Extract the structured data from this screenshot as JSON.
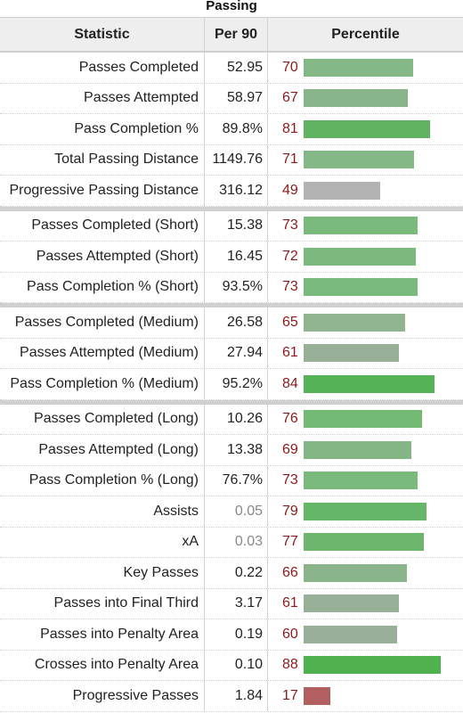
{
  "title": "Passing",
  "columns": {
    "statistic": "Statistic",
    "per90": "Per 90",
    "percentile": "Percentile"
  },
  "groups": [
    [
      {
        "stat": "Passes Completed",
        "per90": "52.95",
        "pct": 70,
        "color": "#84b886"
      },
      {
        "stat": "Passes Attempted",
        "per90": "58.97",
        "pct": 67,
        "color": "#87b488"
      },
      {
        "stat": "Pass Completion %",
        "per90": "89.8%",
        "pct": 81,
        "color": "#5fb25f"
      },
      {
        "stat": "Total Passing Distance",
        "per90": "1149.76",
        "pct": 71,
        "color": "#84b886"
      },
      {
        "stat": "Progressive Passing Distance",
        "per90": "316.12",
        "pct": 49,
        "color": "#b3b3b3"
      }
    ],
    [
      {
        "stat": "Passes Completed (Short)",
        "per90": "15.38",
        "pct": 73,
        "color": "#79b97b"
      },
      {
        "stat": "Passes Attempted (Short)",
        "per90": "16.45",
        "pct": 72,
        "color": "#7bb87d"
      },
      {
        "stat": "Pass Completion % (Short)",
        "per90": "93.5%",
        "pct": 73,
        "color": "#79b97b"
      }
    ],
    [
      {
        "stat": "Passes Completed (Medium)",
        "per90": "26.58",
        "pct": 65,
        "color": "#8fb48f"
      },
      {
        "stat": "Passes Attempted (Medium)",
        "per90": "27.94",
        "pct": 61,
        "color": "#98b097"
      },
      {
        "stat": "Pass Completion % (Medium)",
        "per90": "95.2%",
        "pct": 84,
        "color": "#56b256"
      }
    ],
    [
      {
        "stat": "Passes Completed (Long)",
        "per90": "10.26",
        "pct": 76,
        "color": "#72b973"
      },
      {
        "stat": "Passes Attempted (Long)",
        "per90": "13.38",
        "pct": 69,
        "color": "#84b585"
      },
      {
        "stat": "Pass Completion % (Long)",
        "per90": "76.7%",
        "pct": 73,
        "color": "#79b97b"
      },
      {
        "stat": "Assists",
        "per90": "0.05",
        "pct": 79,
        "color": "#66b667",
        "dim": true
      },
      {
        "stat": "xA",
        "per90": "0.03",
        "pct": 77,
        "color": "#6cb66d",
        "dim": true
      },
      {
        "stat": "Key Passes",
        "per90": "0.22",
        "pct": 66,
        "color": "#8ab48a"
      },
      {
        "stat": "Passes into Final Third",
        "per90": "3.17",
        "pct": 61,
        "color": "#98b097"
      },
      {
        "stat": "Passes into Penalty Area",
        "per90": "0.19",
        "pct": 60,
        "color": "#9aaf99"
      },
      {
        "stat": "Crosses into Penalty Area",
        "per90": "0.10",
        "pct": 88,
        "color": "#4fb24f"
      },
      {
        "stat": "Progressive Passes",
        "per90": "1.84",
        "pct": 17,
        "color": "#b45f5f"
      }
    ]
  ]
}
